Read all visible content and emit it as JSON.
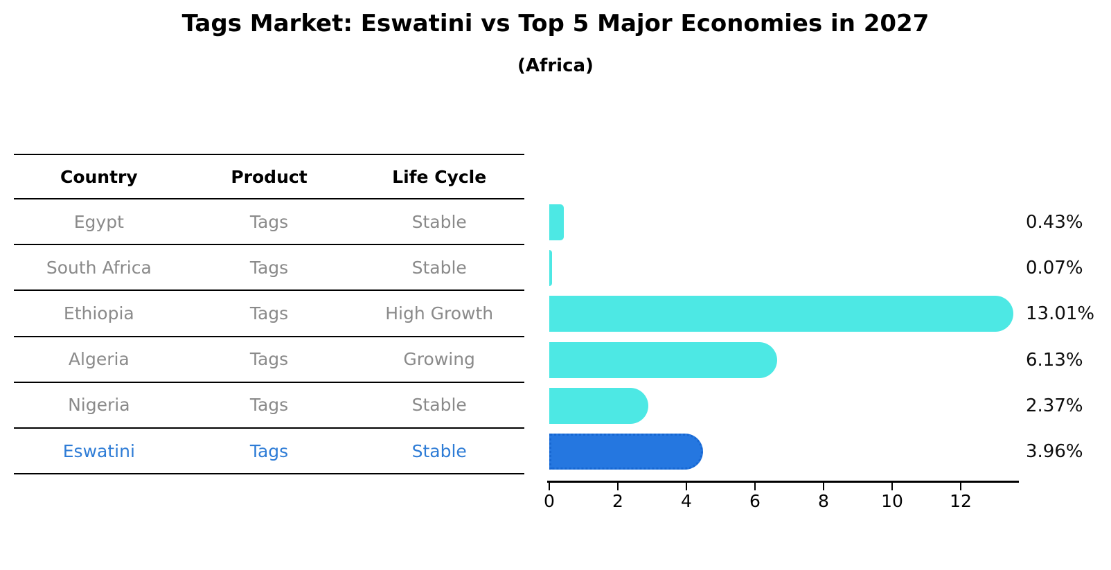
{
  "chart_data": {
    "type": "bar",
    "orientation": "horizontal",
    "title": "Tags Market: Eswatini vs Top 5 Major Economies in 2027",
    "subtitle": "(Africa)",
    "columns": [
      "Country",
      "Product",
      "Life Cycle"
    ],
    "categories": [
      "Egypt",
      "South Africa",
      "Ethiopia",
      "Algeria",
      "Nigeria",
      "Eswatini"
    ],
    "values": [
      0.43,
      0.07,
      13.01,
      6.13,
      2.37,
      3.96
    ],
    "rows": [
      {
        "country": "Egypt",
        "product": "Tags",
        "life_cycle": "Stable",
        "value": 0.43,
        "label": "0.43%",
        "highlight": false
      },
      {
        "country": "South Africa",
        "product": "Tags",
        "life_cycle": "Stable",
        "value": 0.07,
        "label": "0.07%",
        "highlight": false
      },
      {
        "country": "Ethiopia",
        "product": "Tags",
        "life_cycle": "High Growth",
        "value": 13.01,
        "label": "13.01%",
        "highlight": false
      },
      {
        "country": "Algeria",
        "product": "Tags",
        "life_cycle": "Growing",
        "value": 6.13,
        "label": "6.13%",
        "highlight": false
      },
      {
        "country": "Nigeria",
        "product": "Tags",
        "life_cycle": "Stable",
        "value": 2.37,
        "label": "2.37%",
        "highlight": false
      },
      {
        "country": "Eswatini",
        "product": "Tags",
        "life_cycle": "Stable",
        "value": 3.96,
        "label": "3.96%",
        "highlight": true
      }
    ],
    "xticks": [
      0,
      2,
      4,
      6,
      8,
      10,
      12
    ],
    "xlim": [
      0,
      13.7
    ],
    "grid": false,
    "legend": false,
    "colors": {
      "bar": "#4DE8E4",
      "highlight_bar": "#2577E0",
      "highlight_border": "#1767D2",
      "highlight_text": "#2E7CD6",
      "row_text": "#8A8A8A",
      "axis": "#000000"
    }
  }
}
